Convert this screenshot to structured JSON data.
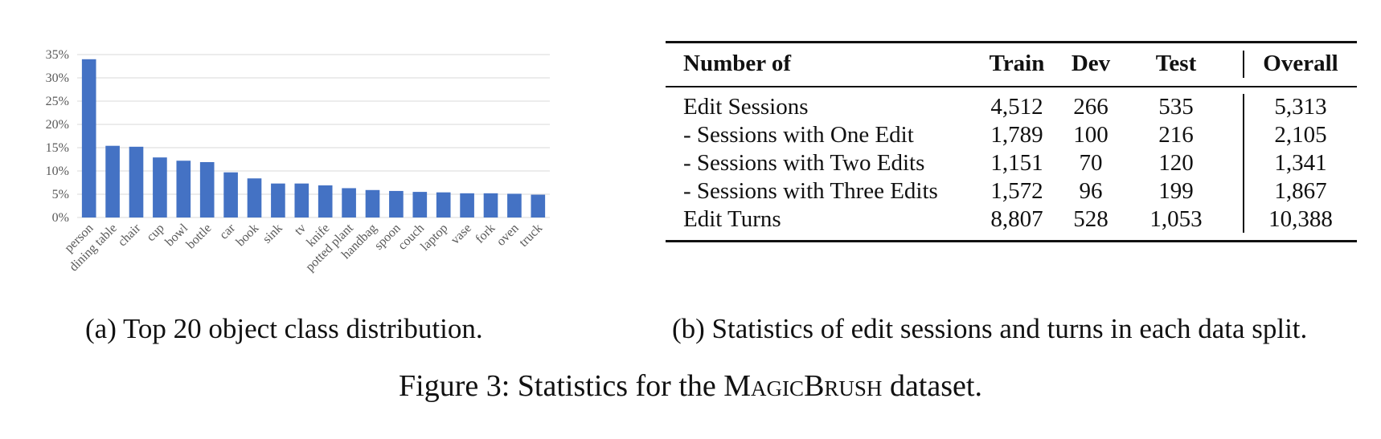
{
  "chart_data": {
    "type": "bar",
    "categories": [
      "person",
      "dining table",
      "chair",
      "cup",
      "bowl",
      "bottle",
      "car",
      "book",
      "sink",
      "tv",
      "knife",
      "potted plant",
      "handbag",
      "spoon",
      "couch",
      "laptop",
      "vase",
      "fork",
      "oven",
      "truck"
    ],
    "values": [
      34.0,
      15.4,
      15.2,
      12.9,
      12.2,
      11.9,
      9.7,
      8.4,
      7.3,
      7.3,
      6.9,
      6.3,
      5.9,
      5.7,
      5.5,
      5.4,
      5.2,
      5.2,
      5.1,
      4.9
    ],
    "yticks": [
      "0%",
      "5%",
      "10%",
      "15%",
      "20%",
      "25%",
      "30%",
      "35%"
    ],
    "ylim": [
      0,
      35
    ],
    "grid": true,
    "bar_color": "#4472c4",
    "grid_color": "#d9d9d9"
  },
  "caption_a": "(a) Top 20 object class distribution.",
  "table": {
    "headers": [
      "Number of",
      "Train",
      "Dev",
      "Test",
      "Overall"
    ],
    "rows": [
      [
        "Edit Sessions",
        "4,512",
        "266",
        "535",
        "5,313"
      ],
      [
        "- Sessions with One Edit",
        "1,789",
        "100",
        "216",
        "2,105"
      ],
      [
        "- Sessions with Two Edits",
        "1,151",
        "70",
        "120",
        "1,341"
      ],
      [
        "- Sessions with Three Edits",
        "1,572",
        "96",
        "199",
        "1,867"
      ],
      [
        "Edit Turns",
        "8,807",
        "528",
        "1,053",
        "10,388"
      ]
    ]
  },
  "caption_b": "(b) Statistics of edit sessions and turns in each data split.",
  "figure_caption": {
    "prefix": "Figure 3: Statistics for the ",
    "name_part1": "Magic",
    "name_part2": "Brush",
    "suffix": " dataset."
  }
}
